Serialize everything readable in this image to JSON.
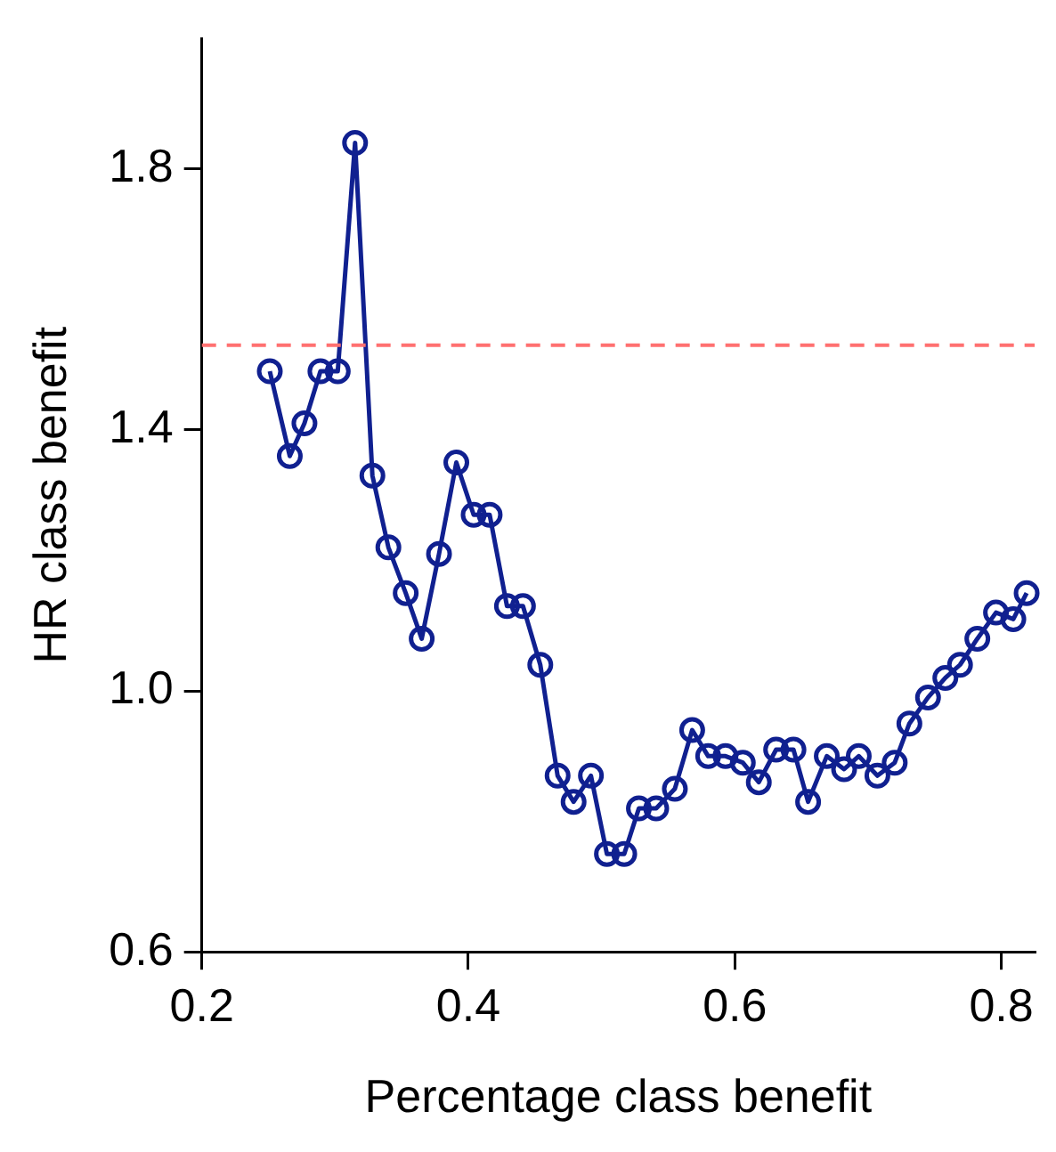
{
  "chart_data": {
    "type": "line",
    "xlabel": "Percentage class benefit",
    "ylabel": "HR class benefit",
    "xlim": [
      0.2,
      0.825
    ],
    "xticks": [
      0.2,
      0.4,
      0.6,
      0.8
    ],
    "ylim": [
      0.6,
      2.0
    ],
    "yticks": [
      0.6,
      {
        "value": 1,
        "label": "1.0"
      },
      1.4,
      1.8
    ],
    "grid": false,
    "legend": false,
    "marker": "circle",
    "line_style": "solid",
    "ref_lines": [
      {
        "axis": "y",
        "value": 1.53,
        "color": "#ff7070",
        "line_style": "dashed"
      }
    ],
    "series": [
      {
        "color": "#102090",
        "x": [
          0.251,
          0.266,
          0.277,
          0.289,
          0.302,
          0.315,
          0.328,
          0.34,
          0.353,
          0.365,
          0.378,
          0.391,
          0.404,
          0.416,
          0.429,
          0.441,
          0.454,
          0.467,
          0.479,
          0.492,
          0.504,
          0.517,
          0.528,
          0.541,
          0.555,
          0.568,
          0.58,
          0.593,
          0.606,
          0.618,
          0.631,
          0.644,
          0.655,
          0.669,
          0.682,
          0.693,
          0.707,
          0.72,
          0.731,
          0.745,
          0.758,
          0.769,
          0.782,
          0.796,
          0.809,
          0.819
        ],
        "values": [
          1.49,
          1.36,
          1.41,
          1.49,
          1.49,
          1.84,
          1.33,
          1.22,
          1.15,
          1.08,
          1.21,
          1.35,
          1.27,
          1.27,
          1.13,
          1.13,
          1.04,
          0.87,
          0.83,
          0.87,
          0.75,
          0.75,
          0.82,
          0.82,
          0.85,
          0.94,
          0.9,
          0.9,
          0.89,
          0.86,
          0.91,
          0.91,
          0.83,
          0.9,
          0.88,
          0.9,
          0.87,
          0.89,
          0.95,
          0.99,
          1.02,
          1.04,
          1.08,
          1.12,
          1.11,
          1.15
        ]
      }
    ]
  }
}
